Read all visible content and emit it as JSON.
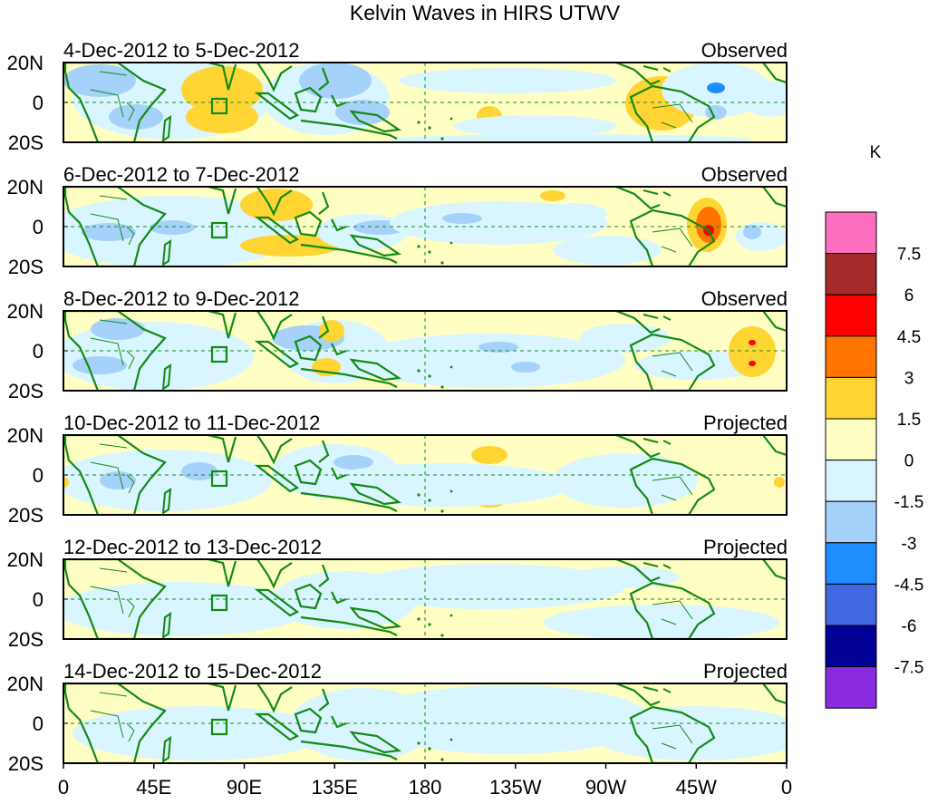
{
  "title": "Kelvin Waves in HIRS UTWV",
  "units": "K",
  "panels": [
    {
      "dates": "4-Dec-2012 to 5-Dec-2012",
      "status": "Observed"
    },
    {
      "dates": "6-Dec-2012 to 7-Dec-2012",
      "status": "Observed"
    },
    {
      "dates": "8-Dec-2012 to 9-Dec-2012",
      "status": "Observed"
    },
    {
      "dates": "10-Dec-2012 to 11-Dec-2012",
      "status": "Projected"
    },
    {
      "dates": "12-Dec-2012 to 13-Dec-2012",
      "status": "Projected"
    },
    {
      "dates": "14-Dec-2012 to 15-Dec-2012",
      "status": "Projected"
    }
  ],
  "lat_labels": [
    "20N",
    "0",
    "20S"
  ],
  "lon_labels": [
    "0",
    "45E",
    "90E",
    "135E",
    "180",
    "135W",
    "90W",
    "45W",
    "0"
  ],
  "colorbar": {
    "labels": [
      "7.5",
      "6",
      "4.5",
      "3",
      "1.5",
      "0",
      "-1.5",
      "-3",
      "-4.5",
      "-6",
      "-7.5"
    ],
    "colors": [
      "#ff6fbf",
      "#a52a2a",
      "#ff0000",
      "#ff7300",
      "#ffd534",
      "#ffffc3",
      "#d9f5ff",
      "#a6d1fa",
      "#1d8dff",
      "#4167e1",
      "#000096",
      "#8a2be2"
    ]
  },
  "colors": {
    "coast": "#138b13",
    "ocean_bg": "#ffffc3"
  }
}
